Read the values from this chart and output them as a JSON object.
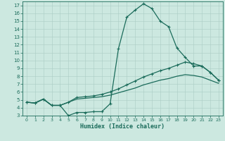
{
  "xlabel": "Humidex (Indice chaleur)",
  "xlim": [
    -0.5,
    23.5
  ],
  "ylim": [
    3,
    17.5
  ],
  "yticks": [
    3,
    4,
    5,
    6,
    7,
    8,
    9,
    10,
    11,
    12,
    13,
    14,
    15,
    16,
    17
  ],
  "xticks": [
    0,
    1,
    2,
    3,
    4,
    5,
    6,
    7,
    8,
    9,
    10,
    11,
    12,
    13,
    14,
    15,
    16,
    17,
    18,
    19,
    20,
    21,
    22,
    23
  ],
  "bg_color": "#cce8e0",
  "line_color": "#1a6b5a",
  "grid_color": "#aaccc4",
  "line1_x": [
    0,
    1,
    2,
    3,
    4,
    5,
    6,
    7,
    8,
    9,
    10,
    11,
    12,
    13,
    14,
    15,
    16,
    17,
    18,
    19,
    20,
    21,
    22,
    23
  ],
  "line1_y": [
    4.7,
    4.6,
    5.1,
    4.3,
    4.3,
    3.0,
    3.4,
    3.4,
    3.5,
    3.5,
    4.5,
    11.5,
    15.5,
    16.4,
    17.2,
    16.6,
    15.0,
    14.3,
    11.6,
    10.4,
    9.3,
    9.3,
    8.5,
    7.5
  ],
  "line2_x": [
    0,
    1,
    2,
    3,
    4,
    5,
    6,
    7,
    8,
    9,
    10,
    11,
    12,
    13,
    14,
    15,
    16,
    17,
    18,
    19,
    20,
    21,
    22,
    23
  ],
  "line2_y": [
    4.7,
    4.6,
    5.1,
    4.3,
    4.3,
    4.7,
    5.3,
    5.4,
    5.5,
    5.7,
    6.0,
    6.4,
    6.9,
    7.4,
    7.9,
    8.3,
    8.7,
    9.0,
    9.4,
    9.8,
    9.6,
    9.3,
    8.5,
    7.5
  ],
  "line3_x": [
    0,
    1,
    2,
    3,
    4,
    5,
    6,
    7,
    8,
    9,
    10,
    11,
    12,
    13,
    14,
    15,
    16,
    17,
    18,
    19,
    20,
    21,
    22,
    23
  ],
  "line3_y": [
    4.7,
    4.6,
    5.1,
    4.3,
    4.3,
    4.7,
    5.1,
    5.2,
    5.3,
    5.4,
    5.6,
    5.9,
    6.2,
    6.5,
    6.9,
    7.2,
    7.5,
    7.7,
    8.0,
    8.2,
    8.1,
    7.9,
    7.5,
    7.1
  ]
}
